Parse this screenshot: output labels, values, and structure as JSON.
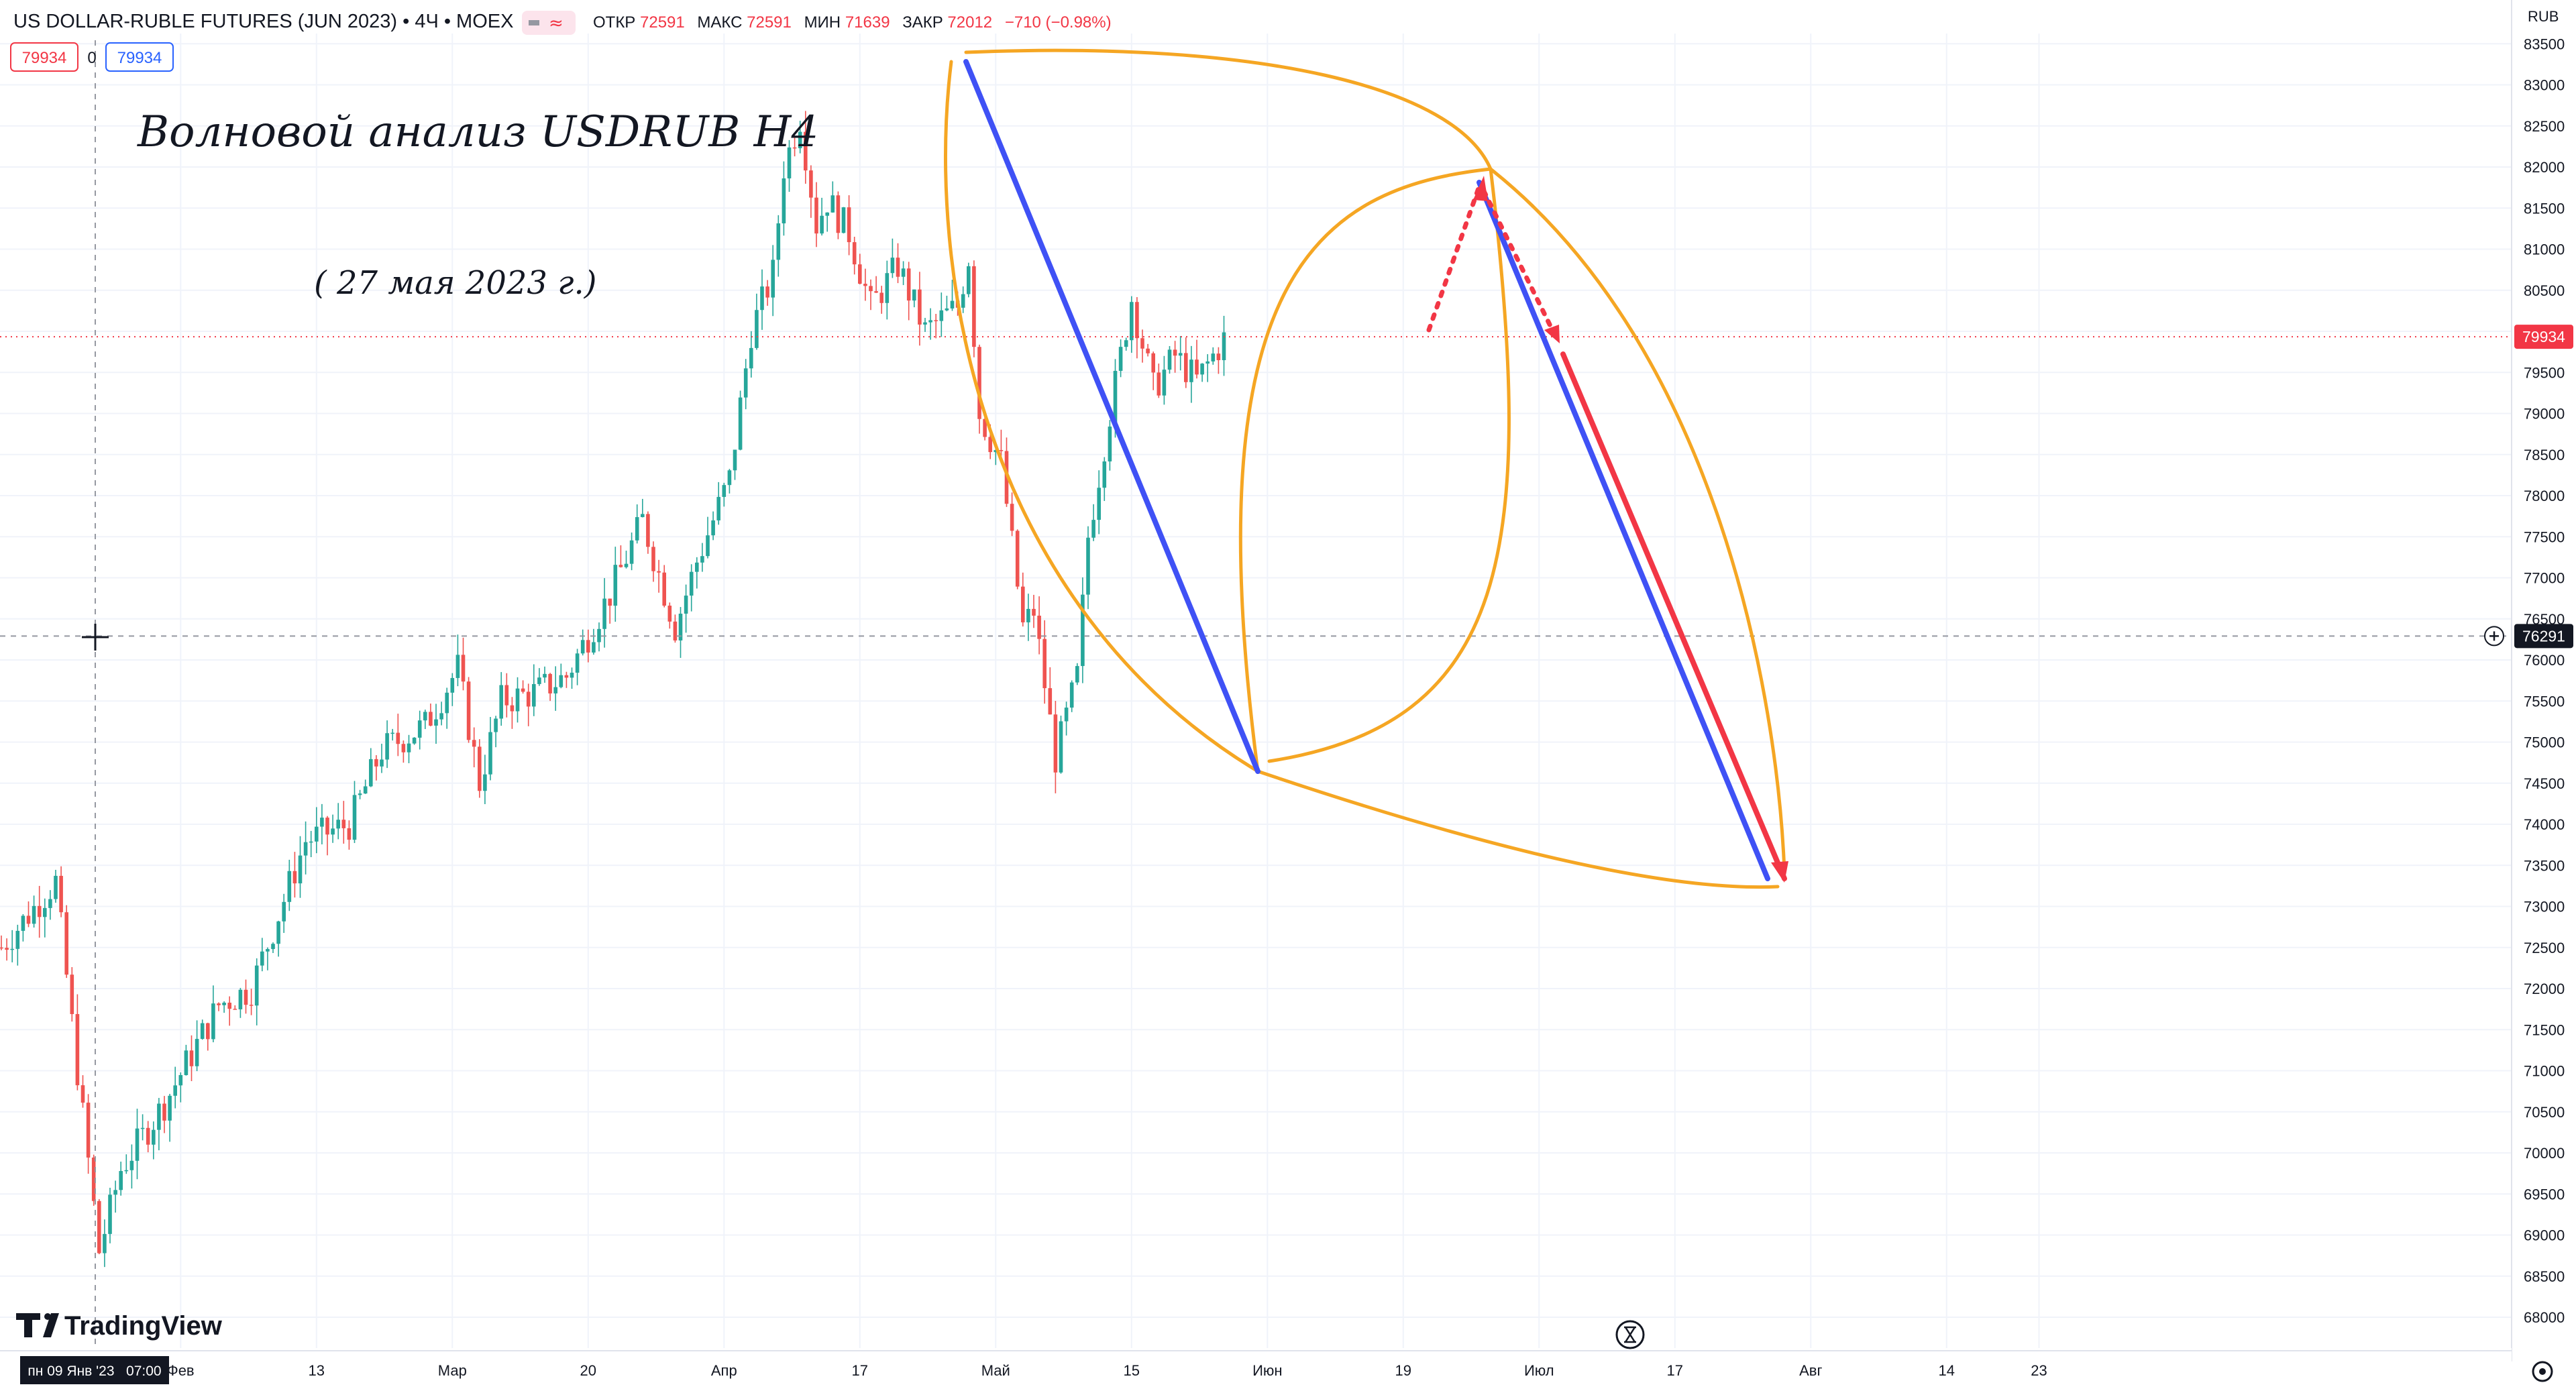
{
  "header": {
    "symbol": "US DOLLAR-RUBLE FUTURES (JUN 2023) • 4Ч • MOEX",
    "open_label": "ОТКР",
    "open_value": "72591",
    "high_label": "МАКС",
    "high_value": "72591",
    "low_label": "МИН",
    "low_value": "71639",
    "close_label": "ЗАКР",
    "close_value": "72012",
    "change": "−710 (−0.98%)",
    "bid": "79934",
    "spread": "0",
    "ask": "79934"
  },
  "annotation": {
    "title": "Волновой анализ USDRUB H4",
    "subtitle": "( 27 мая 2023 г.)"
  },
  "branding": {
    "logo_text": "TradingView"
  },
  "price_axis": {
    "currency": "RUB",
    "ticks": [
      "83500",
      "83000",
      "82500",
      "82000",
      "81500",
      "81000",
      "80500",
      "80000",
      "79500",
      "79000",
      "78500",
      "78000",
      "77500",
      "77000",
      "76500",
      "76000",
      "75500",
      "75000",
      "74500",
      "74000",
      "73500",
      "73000",
      "72500",
      "72000",
      "71500",
      "71000",
      "70500",
      "70000",
      "69500",
      "69000",
      "68500",
      "68000"
    ],
    "last_price_label": "79934",
    "crosshair_label": "76291"
  },
  "time_axis": {
    "ticks": [
      {
        "label": "Фев",
        "index": 33
      },
      {
        "label": "13",
        "index": 58
      },
      {
        "label": "Мар",
        "index": 83
      },
      {
        "label": "20",
        "index": 108
      },
      {
        "label": "Апр",
        "index": 133
      },
      {
        "label": "17",
        "index": 158
      },
      {
        "label": "Май",
        "index": 183
      },
      {
        "label": "15",
        "index": 208
      },
      {
        "label": "Июн",
        "index": 233
      },
      {
        "label": "19",
        "index": 258
      },
      {
        "label": "Июл",
        "index": 283
      },
      {
        "label": "17",
        "index": 308
      },
      {
        "label": "Авг",
        "index": 333
      },
      {
        "label": "14",
        "index": 358
      },
      {
        "label": "23",
        "index": 375
      }
    ],
    "crosshair_label": "пн 09 Янв '23   07:00"
  },
  "colors": {
    "up": "#26a69a",
    "down": "#ef5350",
    "orange": "#f5a623",
    "blue": "#3f51f5",
    "red": "#f23645",
    "grid": "#f0f3fa",
    "text": "#131722"
  },
  "chart_data": {
    "type": "candlestick",
    "x_unit": "4H bar index (0 = 9 Jan 2023)",
    "ylim": [
      67700,
      83800
    ],
    "close_path_anchors": [
      [
        0,
        72500
      ],
      [
        10,
        73300
      ],
      [
        14,
        71000
      ],
      [
        18,
        68800
      ],
      [
        22,
        69800
      ],
      [
        30,
        70600
      ],
      [
        40,
        71800
      ],
      [
        46,
        72000
      ],
      [
        56,
        73800
      ],
      [
        64,
        74000
      ],
      [
        70,
        74900
      ],
      [
        78,
        75200
      ],
      [
        84,
        75900
      ],
      [
        88,
        74500
      ],
      [
        92,
        75500
      ],
      [
        98,
        75600
      ],
      [
        104,
        75800
      ],
      [
        112,
        76800
      ],
      [
        118,
        77700
      ],
      [
        124,
        76400
      ],
      [
        128,
        77200
      ],
      [
        134,
        78200
      ],
      [
        138,
        80000
      ],
      [
        142,
        80700
      ],
      [
        144,
        82000
      ],
      [
        147,
        82600
      ],
      [
        150,
        81300
      ],
      [
        152,
        81600
      ],
      [
        156,
        81200
      ],
      [
        160,
        80300
      ],
      [
        165,
        80800
      ],
      [
        170,
        80000
      ],
      [
        176,
        80300
      ],
      [
        178,
        80900
      ],
      [
        180,
        79000
      ],
      [
        184,
        78400
      ],
      [
        188,
        76400
      ],
      [
        190,
        76600
      ],
      [
        194,
        74800
      ],
      [
        198,
        75800
      ],
      [
        200,
        77500
      ],
      [
        204,
        79000
      ],
      [
        208,
        80400
      ],
      [
        212,
        79300
      ],
      [
        216,
        79700
      ],
      [
        220,
        79400
      ],
      [
        225,
        79900
      ]
    ]
  }
}
